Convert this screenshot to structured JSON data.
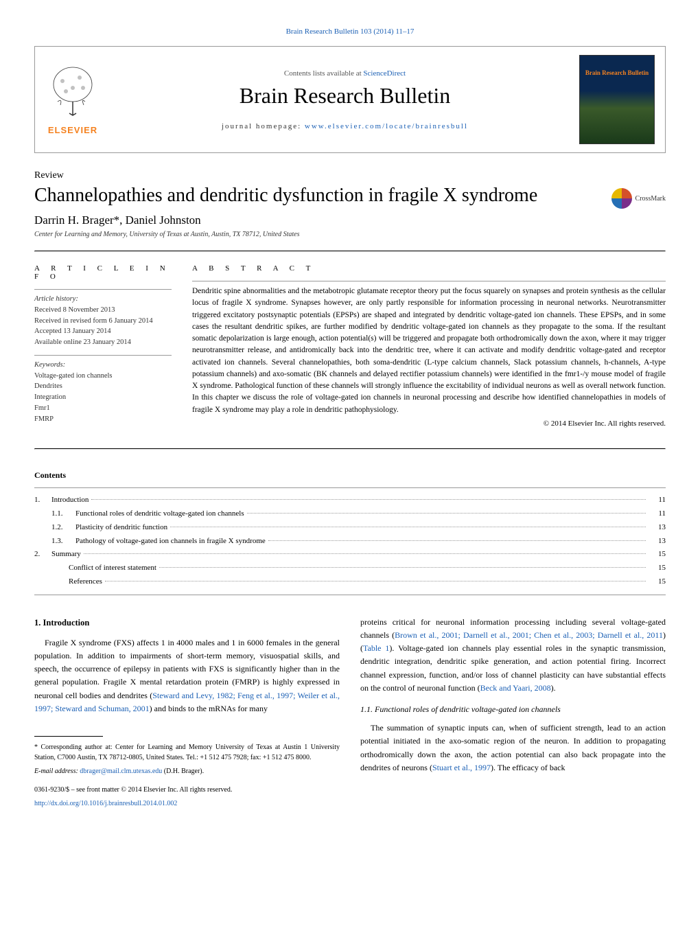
{
  "header": {
    "citation": "Brain Research Bulletin 103 (2014) 11–17",
    "contents_available": "Contents lists available at",
    "sciencedirect": "ScienceDirect",
    "journal_title": "Brain Research Bulletin",
    "homepage_label": "journal homepage:",
    "homepage_url": "www.elsevier.com/locate/brainresbull",
    "elsevier_text": "ELSEVIER",
    "cover_title": "Brain Research Bulletin",
    "crossmark": "CrossMark"
  },
  "article": {
    "type": "Review",
    "title": "Channelopathies and dendritic dysfunction in fragile X syndrome",
    "authors": "Darrin H. Brager*, Daniel Johnston",
    "affiliation": "Center for Learning and Memory, University of Texas at Austin, Austin, TX 78712, United States"
  },
  "info": {
    "section_label": "A R T I C L E   I N F O",
    "history_heading": "Article history:",
    "history": [
      "Received 8 November 2013",
      "Received in revised form 6 January 2014",
      "Accepted 13 January 2014",
      "Available online 23 January 2014"
    ],
    "keywords_heading": "Keywords:",
    "keywords": [
      "Voltage-gated ion channels",
      "Dendrites",
      "Integration",
      "Fmr1",
      "FMRP"
    ]
  },
  "abstract": {
    "section_label": "A B S T R A C T",
    "text": "Dendritic spine abnormalities and the metabotropic glutamate receptor theory put the focus squarely on synapses and protein synthesis as the cellular locus of fragile X syndrome. Synapses however, are only partly responsible for information processing in neuronal networks. Neurotransmitter triggered excitatory postsynaptic potentials (EPSPs) are shaped and integrated by dendritic voltage-gated ion channels. These EPSPs, and in some cases the resultant dendritic spikes, are further modified by dendritic voltage-gated ion channels as they propagate to the soma. If the resultant somatic depolarization is large enough, action potential(s) will be triggered and propagate both orthodromically down the axon, where it may trigger neurotransmitter release, and antidromically back into the dendritic tree, where it can activate and modify dendritic voltage-gated and receptor activated ion channels. Several channelopathies, both soma-dendritic (L-type calcium channels, Slack potassium channels, h-channels, A-type potassium channels) and axo-somatic (BK channels and delayed rectifier potassium channels) were identified in the fmr1-/y mouse model of fragile X syndrome. Pathological function of these channels will strongly influence the excitability of individual neurons as well as overall network function. In this chapter we discuss the role of voltage-gated ion channels in neuronal processing and describe how identified channelopathies in models of fragile X syndrome may play a role in dendritic pathophysiology.",
    "copyright": "© 2014 Elsevier Inc. All rights reserved."
  },
  "contents": {
    "title": "Contents",
    "items": [
      {
        "num": "1.",
        "text": "Introduction",
        "page": "11",
        "level": 0
      },
      {
        "num": "1.1.",
        "text": "Functional roles of dendritic voltage-gated ion channels",
        "page": "11",
        "level": 1
      },
      {
        "num": "1.2.",
        "text": "Plasticity of dendritic function",
        "page": "13",
        "level": 1
      },
      {
        "num": "1.3.",
        "text": "Pathology of voltage-gated ion channels in fragile X syndrome",
        "page": "13",
        "level": 1
      },
      {
        "num": "2.",
        "text": "Summary",
        "page": "15",
        "level": 0
      },
      {
        "num": "",
        "text": "Conflict of interest statement",
        "page": "15",
        "level": 0
      },
      {
        "num": "",
        "text": "References",
        "page": "15",
        "level": 0
      }
    ]
  },
  "body": {
    "h1": "1. Introduction",
    "p1a": "Fragile X syndrome (FXS) affects 1 in 4000 males and 1 in 6000 females in the general population. In addition to impairments of short-term memory, visuospatial skills, and speech, the occurrence of epilepsy in patients with FXS is significantly higher than in the general population. Fragile X mental retardation protein (FMRP) is highly expressed in neuronal cell bodies and dendrites (",
    "p1_cite1": "Steward and Levy, 1982; Feng et al., 1997; Weiler et al., 1997; Steward and Schuman, 2001",
    "p1b": ") and binds to the mRNAs for many",
    "p2a": "proteins critical for neuronal information processing including several voltage-gated channels (",
    "p2_cite1": "Brown et al., 2001; Darnell et al., 2001; Chen et al., 2003; Darnell et al., 2011",
    "p2b": ") (",
    "p2_cite2": "Table 1",
    "p2c": "). Voltage-gated ion channels play essential roles in the synaptic transmission, dendritic integration, dendritic spike generation, and action potential firing. Incorrect channel expression, function, and/or loss of channel plasticity can have substantial effects on the control of neuronal function (",
    "p2_cite3": "Beck and Yaari, 2008",
    "p2d": ").",
    "h2": "1.1. Functional roles of dendritic voltage-gated ion channels",
    "p3a": "The summation of synaptic inputs can, when of sufficient strength, lead to an action potential initiated in the axo-somatic region of the neuron. In addition to propagating orthodromically down the axon, the action potential can also back propagate into the dendrites of neurons (",
    "p3_cite1": "Stuart et al., 1997",
    "p3b": "). The efficacy of back"
  },
  "footnotes": {
    "corr": "* Corresponding author at: Center for Learning and Memory University of Texas at Austin 1 University Station, C7000 Austin, TX 78712-0805, United States. Tel.: +1 512 475 7928; fax: +1 512 475 8000.",
    "email_label": "E-mail address:",
    "email": "dbrager@mail.clm.utexas.edu",
    "email_name": " (D.H. Brager).",
    "issn": "0361-9230/$ – see front matter © 2014 Elsevier Inc. All rights reserved.",
    "doi": "http://dx.doi.org/10.1016/j.brainresbull.2014.01.002"
  },
  "colors": {
    "link": "#1a5fb4",
    "elsevier_orange": "#f58220",
    "text": "#000000",
    "border": "#999999"
  }
}
